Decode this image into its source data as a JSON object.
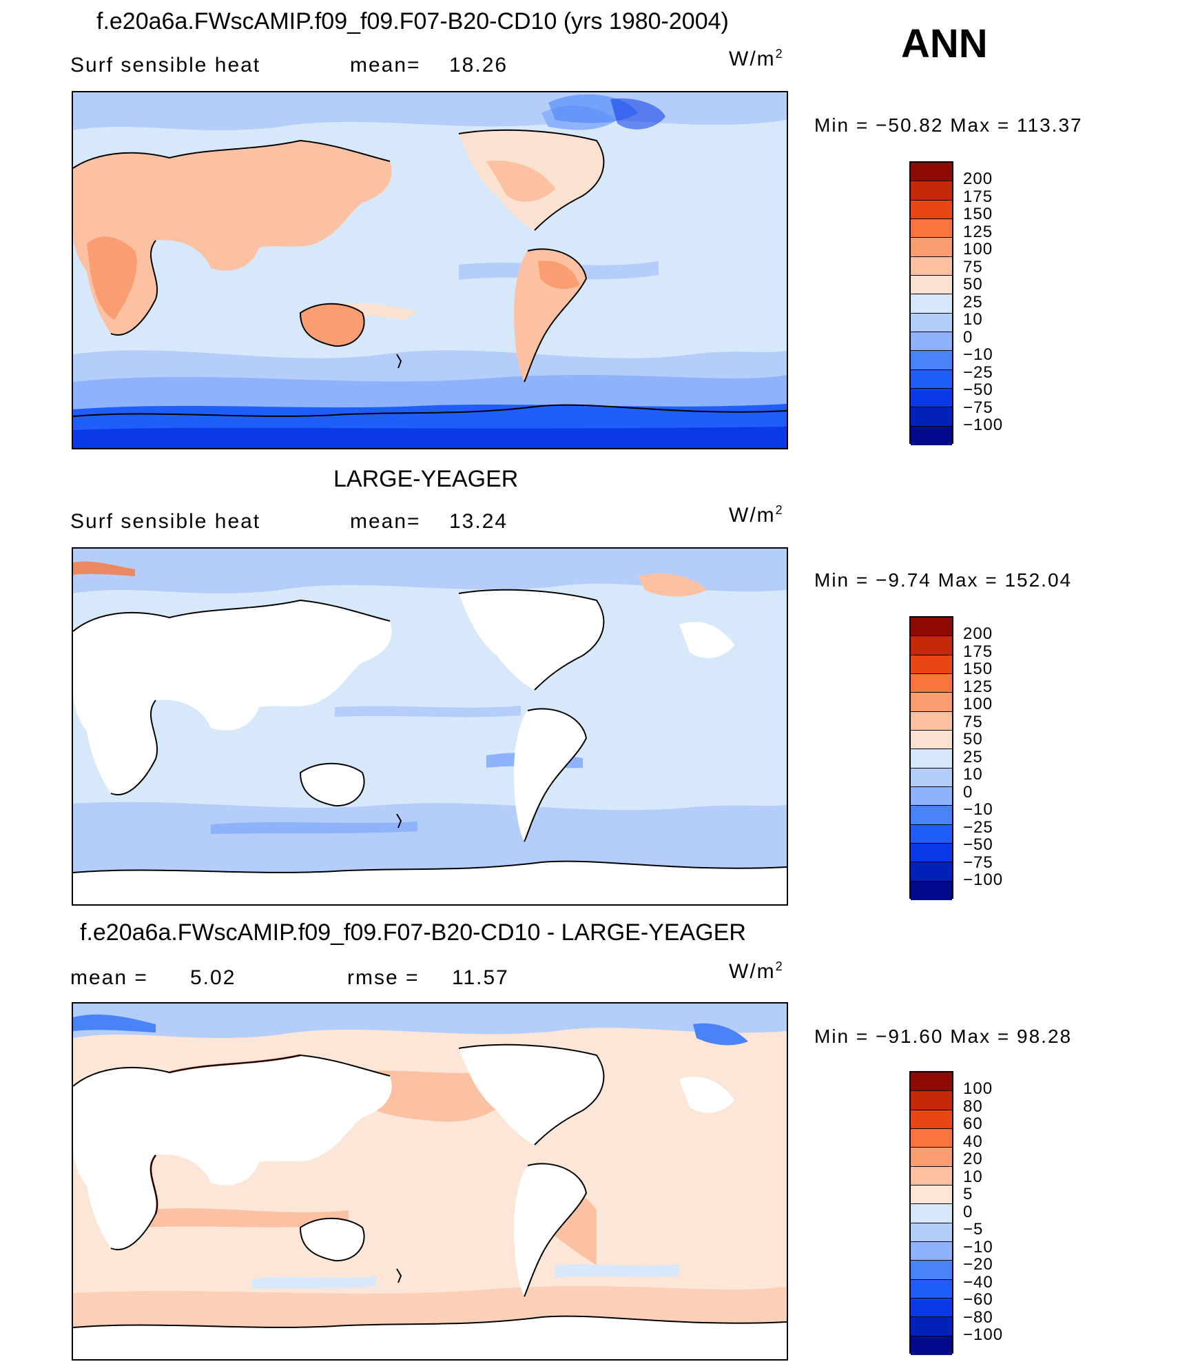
{
  "season": "ANN",
  "colors": {
    "abs_scale": [
      "#000a8a",
      "#0022b8",
      "#0a3ae8",
      "#1f5ef9",
      "#4983f8",
      "#8fb3fb",
      "#b5cdfb",
      "#d7e8fb",
      "#fbe1cf",
      "#fcc1a2",
      "#fb9d72",
      "#f9773f",
      "#e94615",
      "#c42a0a",
      "#8e0b04"
    ],
    "diff_scale": [
      "#000a8a",
      "#0022b8",
      "#0a3ae8",
      "#1f5ef9",
      "#4983f8",
      "#8fb3fb",
      "#b5cdfb",
      "#d7e8fb",
      "#fbe6d7",
      "#fcc1a2",
      "#fb9d72",
      "#f9773f",
      "#e94615",
      "#c42a0a",
      "#8e0b04"
    ],
    "land_blank": "#ffffff",
    "coast": "#000000"
  },
  "panels": [
    {
      "title": "f.e20a6a.FWscAMIP.f09_f09.F07-B20-CD10 (yrs 1980-2004)",
      "left_label": "Surf  sensible  heat",
      "stat_label": "mean=",
      "stat_value": "18.26",
      "stat2_label": "",
      "stat2_value": "",
      "units": "W/m",
      "units_sup": "2",
      "minmax": "Min  =  −50.82  Max  =  113.37",
      "levels": [
        "200",
        "175",
        "150",
        "125",
        "100",
        "75",
        "50",
        "25",
        "10",
        "0",
        "−10",
        "−25",
        "−50",
        "−75",
        "−100"
      ]
    },
    {
      "title": "LARGE-YEAGER",
      "left_label": "Surf  sensible  heat",
      "stat_label": "mean=",
      "stat_value": "13.24",
      "stat2_label": "",
      "stat2_value": "",
      "units": "W/m",
      "units_sup": "2",
      "minmax": "Min  =    −9.74  Max  =  152.04",
      "levels": [
        "200",
        "175",
        "150",
        "125",
        "100",
        "75",
        "50",
        "25",
        "10",
        "0",
        "−10",
        "−25",
        "−50",
        "−75",
        "−100"
      ]
    },
    {
      "title": "f.e20a6a.FWscAMIP.f09_f09.F07-B20-CD10 - LARGE-YEAGER",
      "left_label": "mean  =",
      "stat_label": "",
      "stat_value": "5.02",
      "stat2_label": "rmse  =",
      "stat2_value": "11.57",
      "units": "W/m",
      "units_sup": "2",
      "minmax": "Min  =  −91.60  Max  =    98.28",
      "levels": [
        "100",
        "80",
        "60",
        "40",
        "20",
        "10",
        "5",
        "0",
        "−5",
        "−10",
        "−20",
        "−40",
        "−60",
        "−80",
        "−100"
      ]
    }
  ]
}
